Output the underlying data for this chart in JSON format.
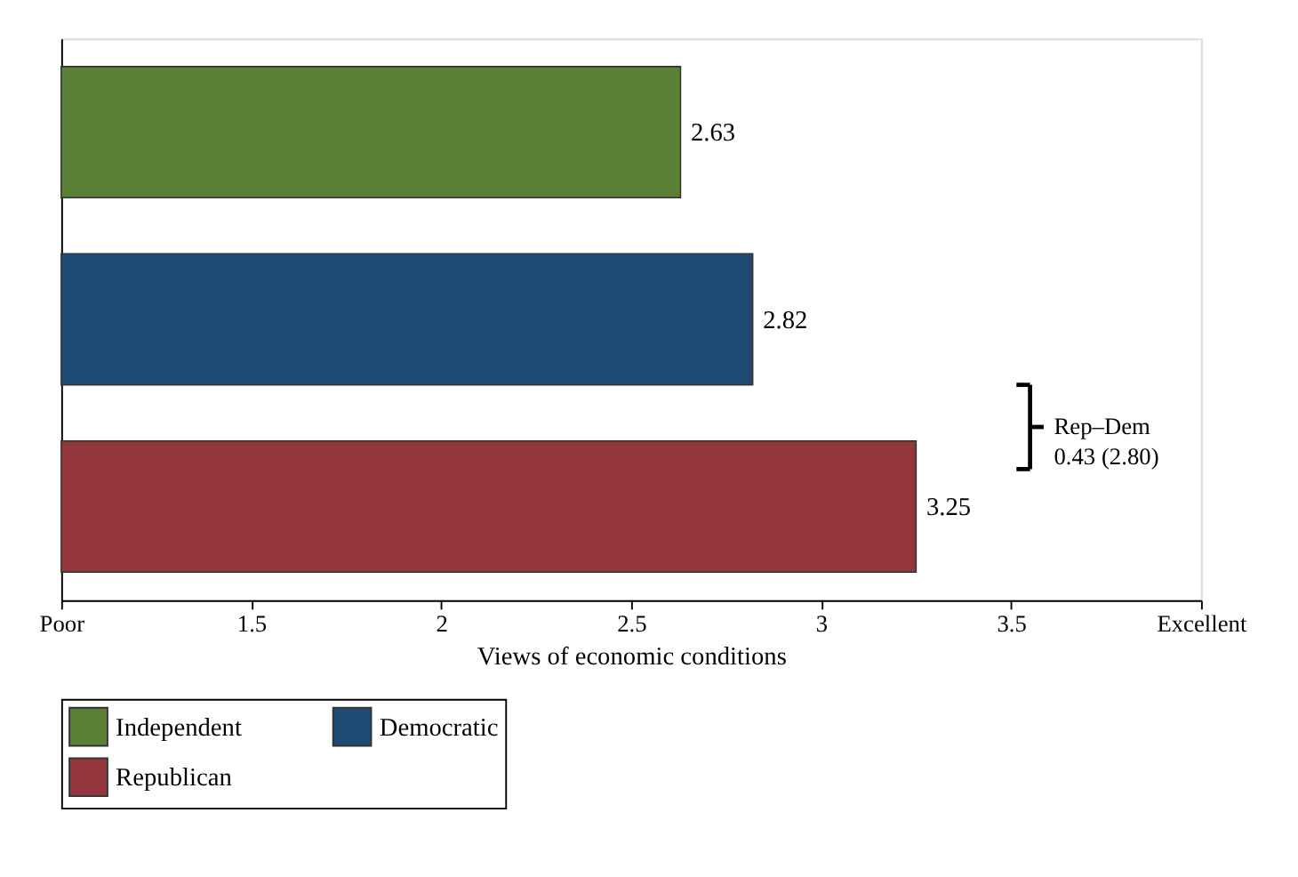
{
  "chart_data": {
    "type": "bar",
    "orientation": "horizontal",
    "xlabel": "Views of economic conditions",
    "categories": [
      null,
      null,
      null
    ],
    "series": [
      {
        "name": "Independent",
        "color": "#5b7f35",
        "values": [
          2.63,
          null,
          null
        ]
      },
      {
        "name": "Democratic",
        "color": "#1f4a74",
        "values": [
          null,
          2.82,
          null
        ]
      },
      {
        "name": "Republican",
        "color": "#93373d",
        "values": [
          null,
          null,
          3.25
        ]
      }
    ],
    "xlim": [
      1,
      4
    ],
    "xticks": [
      {
        "value": 1,
        "label": "Poor"
      },
      1.5,
      2,
      2.5,
      3,
      3.5,
      {
        "value": 4,
        "label": "Excellent"
      }
    ],
    "data_labels": true,
    "grid": false,
    "legend": "bottom",
    "tick_labels": "x",
    "annotations": [
      "Rep–Dem\n0.43 (2.80)"
    ]
  }
}
